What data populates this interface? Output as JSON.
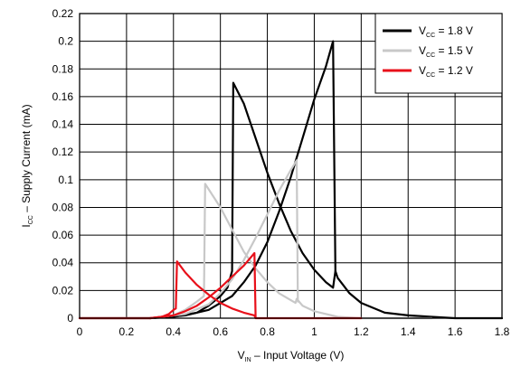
{
  "chart_data": {
    "type": "line",
    "xlabel": {
      "main": "V",
      "sub": "IN",
      "rest": " – Input Voltage (V)"
    },
    "ylabel": {
      "main": "I",
      "sub": "CC",
      "rest": " – Supply Current (mA)"
    },
    "xlim": [
      0,
      1.8
    ],
    "ylim": [
      0,
      0.22
    ],
    "x_ticks": [
      "0",
      "0.2",
      "0.4",
      "0.6",
      "0.8",
      "1",
      "1.2",
      "1.4",
      "1.6",
      "1.8"
    ],
    "y_ticks": [
      "0",
      "0.02",
      "0.04",
      "0.06",
      "0.08",
      "0.1",
      "0.12",
      "0.14",
      "0.16",
      "0.18",
      "0.2",
      "0.22"
    ],
    "grid": true,
    "legend_position": "top-right",
    "series": [
      {
        "name": {
          "main": "V",
          "sub": "CC",
          "rest": " = 1.8 V"
        },
        "color": "#000000",
        "curves": [
          [
            [
              0,
              0
            ],
            [
              0.3,
              0
            ],
            [
              0.4,
              0.001
            ],
            [
              0.5,
              0.004
            ],
            [
              0.55,
              0.009
            ],
            [
              0.6,
              0.016
            ],
            [
              0.63,
              0.022
            ],
            [
              0.65,
              0.034
            ],
            [
              0.655,
              0.17
            ],
            [
              0.7,
              0.155
            ],
            [
              0.75,
              0.13
            ],
            [
              0.8,
              0.105
            ],
            [
              0.85,
              0.083
            ],
            [
              0.9,
              0.063
            ],
            [
              0.95,
              0.047
            ],
            [
              1.0,
              0.035
            ],
            [
              1.05,
              0.026
            ],
            [
              1.08,
              0.022
            ],
            [
              1.09,
              0.034
            ],
            [
              1.1,
              0.029
            ],
            [
              1.15,
              0.018
            ],
            [
              1.2,
              0.011
            ],
            [
              1.3,
              0.004
            ],
            [
              1.4,
              0.002
            ],
            [
              1.5,
              0.001
            ],
            [
              1.6,
              0
            ],
            [
              1.8,
              0
            ]
          ],
          [
            [
              0.3,
              0
            ],
            [
              0.45,
              0.002
            ],
            [
              0.55,
              0.006
            ],
            [
              0.65,
              0.016
            ],
            [
              0.7,
              0.026
            ],
            [
              0.75,
              0.038
            ],
            [
              0.8,
              0.055
            ],
            [
              0.85,
              0.077
            ],
            [
              0.9,
              0.102
            ],
            [
              0.95,
              0.13
            ],
            [
              1.0,
              0.158
            ],
            [
              1.05,
              0.182
            ],
            [
              1.08,
              0.2
            ],
            [
              1.09,
              0.034
            ]
          ]
        ]
      },
      {
        "name": {
          "main": "V",
          "sub": "CC",
          "rest": " = 1.5 V"
        },
        "color": "#c8c8c8",
        "curves": [
          [
            [
              0,
              0
            ],
            [
              0.3,
              0
            ],
            [
              0.4,
              0.002
            ],
            [
              0.45,
              0.006
            ],
            [
              0.5,
              0.012
            ],
            [
              0.53,
              0.016
            ],
            [
              0.535,
              0.097
            ],
            [
              0.6,
              0.08
            ],
            [
              0.65,
              0.064
            ],
            [
              0.7,
              0.048
            ],
            [
              0.75,
              0.036
            ],
            [
              0.8,
              0.026
            ],
            [
              0.85,
              0.018
            ],
            [
              0.9,
              0.013
            ],
            [
              0.92,
              0.011
            ],
            [
              0.925,
              0.014
            ],
            [
              0.95,
              0.009
            ],
            [
              1.0,
              0.005
            ],
            [
              1.1,
              0.001
            ],
            [
              1.2,
              0
            ],
            [
              1.5,
              0
            ]
          ],
          [
            [
              0.3,
              0
            ],
            [
              0.45,
              0.003
            ],
            [
              0.55,
              0.01
            ],
            [
              0.6,
              0.018
            ],
            [
              0.65,
              0.028
            ],
            [
              0.7,
              0.042
            ],
            [
              0.75,
              0.058
            ],
            [
              0.8,
              0.075
            ],
            [
              0.85,
              0.092
            ],
            [
              0.9,
              0.107
            ],
            [
              0.925,
              0.114
            ],
            [
              0.93,
              0.012
            ]
          ]
        ]
      },
      {
        "name": {
          "main": "V",
          "sub": "CC",
          "rest": " = 1.2 V"
        },
        "color": "#e8101a",
        "curves": [
          [
            [
              0,
              0
            ],
            [
              0.3,
              0
            ],
            [
              0.35,
              0.001
            ],
            [
              0.38,
              0.003
            ],
            [
              0.4,
              0.006
            ],
            [
              0.41,
              0.007
            ],
            [
              0.415,
              0.041
            ],
            [
              0.45,
              0.033
            ],
            [
              0.5,
              0.024
            ],
            [
              0.55,
              0.017
            ],
            [
              0.6,
              0.011
            ],
            [
              0.65,
              0.007
            ],
            [
              0.7,
              0.004
            ],
            [
              0.745,
              0.002
            ],
            [
              0.75,
              0
            ],
            [
              0.8,
              0
            ],
            [
              1.2,
              0
            ]
          ],
          [
            [
              0.3,
              0
            ],
            [
              0.4,
              0.002
            ],
            [
              0.45,
              0.005
            ],
            [
              0.5,
              0.009
            ],
            [
              0.55,
              0.015
            ],
            [
              0.6,
              0.022
            ],
            [
              0.65,
              0.03
            ],
            [
              0.7,
              0.038
            ],
            [
              0.745,
              0.047
            ],
            [
              0.75,
              0
            ]
          ]
        ]
      }
    ]
  }
}
